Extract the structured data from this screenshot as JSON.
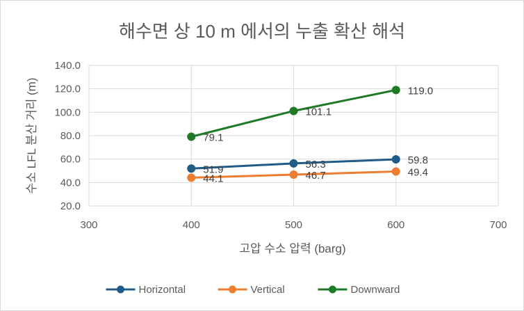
{
  "chart_data": {
    "type": "scatter",
    "title": "해수면 상 10 m 에서의 누출 확산 해석",
    "xlabel": "고압 수소 압력 (barg)",
    "ylabel": "수소 LFL 분산 거리 (m)",
    "xlim": [
      300,
      700
    ],
    "ylim": [
      20,
      140
    ],
    "xticks": [
      300,
      400,
      500,
      600,
      700
    ],
    "yticks": [
      "20.0",
      "40.0",
      "60.0",
      "80.0",
      "100.0",
      "120.0",
      "140.0"
    ],
    "ytick_values": [
      20,
      40,
      60,
      80,
      100,
      120,
      140
    ],
    "grid": true,
    "legend": "bottom",
    "series": [
      {
        "name": "Horizontal",
        "color": "#1f5c87",
        "x": [
          400,
          500,
          600
        ],
        "y": [
          51.9,
          56.3,
          59.8
        ],
        "labels": [
          "51.9",
          "56.3",
          "59.8"
        ]
      },
      {
        "name": "Vertical",
        "color": "#ed7d31",
        "x": [
          400,
          500,
          600
        ],
        "y": [
          44.1,
          46.7,
          49.4
        ],
        "labels": [
          "44.1",
          "46.7",
          "49.4"
        ]
      },
      {
        "name": "Downward",
        "color": "#1e7a25",
        "x": [
          400,
          500,
          600
        ],
        "y": [
          79.1,
          101.1,
          119.0
        ],
        "labels": [
          "79.1",
          "101.1",
          "119.0"
        ]
      }
    ]
  }
}
